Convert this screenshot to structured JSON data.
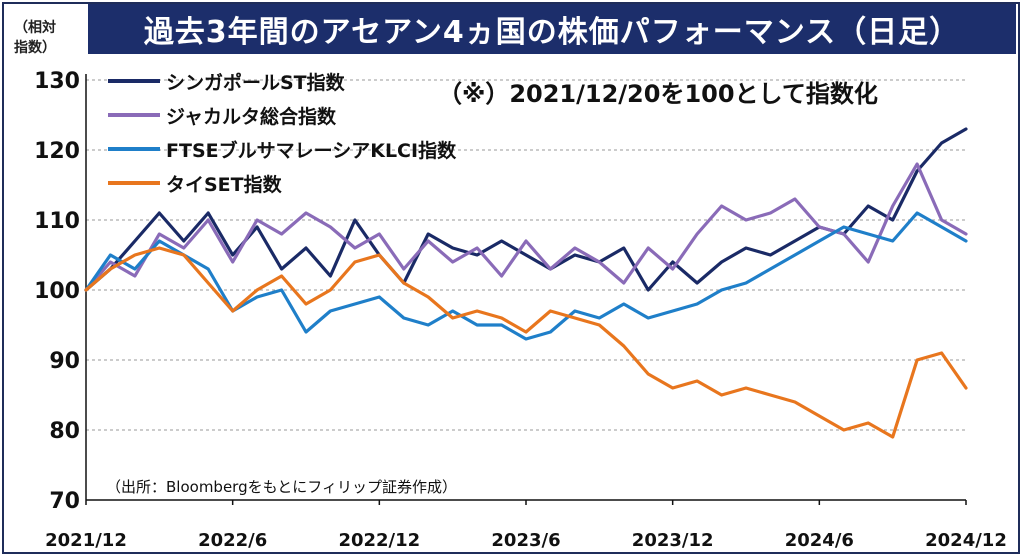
{
  "title": "過去3年間のアセアン4ヵ国の株価パフォーマンス（日足）",
  "unit_label_line1": "（相対",
  "unit_label_line2": "指数）",
  "note": "（※）2021/12/20を100として指数化",
  "source": "（出所：Bloombergをもとにフィリップ証券作成）",
  "chart_data": {
    "type": "line",
    "title": "過去3年間のアセアン4ヵ国の株価パフォーマンス（日足）",
    "ylim": [
      70,
      130
    ],
    "yticks": [
      70,
      80,
      90,
      100,
      110,
      120,
      130
    ],
    "x_categories": [
      "2021/12",
      "2022/6",
      "2022/12",
      "2023/6",
      "2023/12",
      "2024/6",
      "2024/12"
    ],
    "grid": "horizontal dashed",
    "legend": "top-left",
    "series": [
      {
        "name": "シンガポールST指数",
        "color": "#1a2a66",
        "x": [
          0,
          1,
          2,
          3,
          4,
          5,
          6,
          7,
          8,
          9,
          10,
          11,
          12,
          13,
          14,
          15,
          16,
          17,
          18,
          19,
          20,
          21,
          22,
          23,
          24,
          25,
          26,
          27,
          28,
          29,
          30,
          31,
          32,
          33,
          34,
          35,
          36
        ],
        "values": [
          100,
          103,
          107,
          111,
          107,
          111,
          105,
          109,
          103,
          106,
          102,
          110,
          105,
          101,
          108,
          106,
          105,
          107,
          105,
          103,
          105,
          104,
          106,
          100,
          104,
          101,
          104,
          106,
          105,
          107,
          109,
          108,
          112,
          110,
          117,
          121,
          123
        ]
      },
      {
        "name": "ジャカルタ総合指数",
        "color": "#8a6bb8",
        "x": [
          0,
          1,
          2,
          3,
          4,
          5,
          6,
          7,
          8,
          9,
          10,
          11,
          12,
          13,
          14,
          15,
          16,
          17,
          18,
          19,
          20,
          21,
          22,
          23,
          24,
          25,
          26,
          27,
          28,
          29,
          30,
          31,
          32,
          33,
          34,
          35,
          36
        ],
        "values": [
          100,
          104,
          102,
          108,
          106,
          110,
          104,
          110,
          108,
          111,
          109,
          106,
          108,
          103,
          107,
          104,
          106,
          102,
          107,
          103,
          106,
          104,
          101,
          106,
          103,
          108,
          112,
          110,
          111,
          113,
          109,
          108,
          104,
          112,
          118,
          110,
          108
        ]
      },
      {
        "name": "FTSEブルサマレーシアKLCI指数",
        "color": "#1f7fc9",
        "x": [
          0,
          1,
          2,
          3,
          4,
          5,
          6,
          7,
          8,
          9,
          10,
          11,
          12,
          13,
          14,
          15,
          16,
          17,
          18,
          19,
          20,
          21,
          22,
          23,
          24,
          25,
          26,
          27,
          28,
          29,
          30,
          31,
          32,
          33,
          34,
          35,
          36
        ],
        "values": [
          100,
          105,
          103,
          107,
          105,
          103,
          97,
          99,
          100,
          94,
          97,
          98,
          99,
          96,
          95,
          97,
          95,
          95,
          93,
          94,
          97,
          96,
          98,
          96,
          97,
          98,
          100,
          101,
          103,
          105,
          107,
          109,
          108,
          107,
          111,
          109,
          107
        ]
      },
      {
        "name": "タイSET指数",
        "color": "#e8761e",
        "x": [
          0,
          1,
          2,
          3,
          4,
          5,
          6,
          7,
          8,
          9,
          10,
          11,
          12,
          13,
          14,
          15,
          16,
          17,
          18,
          19,
          20,
          21,
          22,
          23,
          24,
          25,
          26,
          27,
          28,
          29,
          30,
          31,
          32,
          33,
          34,
          35,
          36
        ],
        "values": [
          100,
          103,
          105,
          106,
          105,
          101,
          97,
          100,
          102,
          98,
          100,
          104,
          105,
          101,
          99,
          96,
          97,
          96,
          94,
          97,
          96,
          95,
          92,
          88,
          86,
          87,
          85,
          86,
          85,
          84,
          82,
          80,
          81,
          79,
          90,
          91,
          86
        ]
      }
    ]
  }
}
